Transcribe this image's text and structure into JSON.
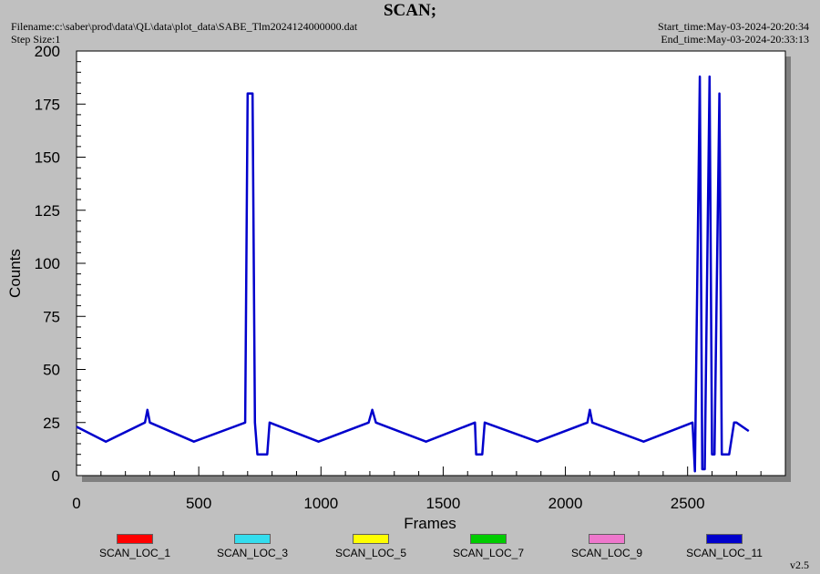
{
  "header": {
    "title": "SCAN;",
    "filename": "Filename:c:\\saber\\prod\\data\\QL\\data\\plot_data\\SABE_Tlm2024124000000.dat",
    "step_size": "Step Size:1",
    "start_time": "Start_time:May-03-2024-20:20:34",
    "end_time": "End_time:May-03-2024-20:33:13"
  },
  "footer": {
    "version": "v2.5"
  },
  "chart_data": {
    "type": "line",
    "title": "SCAN;",
    "xlabel": "Frames",
    "ylabel": "Counts",
    "xlim": [
      0,
      2900
    ],
    "ylim": [
      0,
      200
    ],
    "xticks": [
      0,
      500,
      1000,
      1500,
      2000,
      2500
    ],
    "yticks": [
      0,
      25,
      50,
      75,
      100,
      125,
      150,
      175,
      200
    ],
    "grid": false,
    "legend_position": "bottom",
    "series": [
      {
        "name": "SCAN_LOC_1",
        "color": "#ff0000"
      },
      {
        "name": "SCAN_LOC_3",
        "color": "#33ddee"
      },
      {
        "name": "SCAN_LOC_5",
        "color": "#ffff00"
      },
      {
        "name": "SCAN_LOC_7",
        "color": "#00cc00"
      },
      {
        "name": "SCAN_LOC_9",
        "color": "#ee77cc"
      },
      {
        "name": "SCAN_LOC_11",
        "color": "#0000cc",
        "x": [
          0,
          120,
          280,
          290,
          300,
          480,
          690,
          700,
          710,
          720,
          730,
          740,
          780,
          790,
          990,
          1195,
          1210,
          1225,
          1430,
          1630,
          1635,
          1660,
          1670,
          1885,
          2090,
          2100,
          2110,
          2320,
          2520,
          2530,
          2550,
          2560,
          2570,
          2590,
          2600,
          2610,
          2630,
          2640,
          2650,
          2670,
          2690,
          2700,
          2750
        ],
        "values": [
          23,
          16,
          25,
          31,
          25,
          16,
          25,
          180,
          180,
          180,
          25,
          10,
          10,
          25,
          16,
          25,
          31,
          25,
          16,
          25,
          10,
          10,
          25,
          16,
          25,
          31,
          25,
          16,
          25,
          2,
          188,
          3,
          3,
          188,
          10,
          10,
          180,
          10,
          10,
          10,
          25,
          25,
          21
        ]
      }
    ]
  }
}
